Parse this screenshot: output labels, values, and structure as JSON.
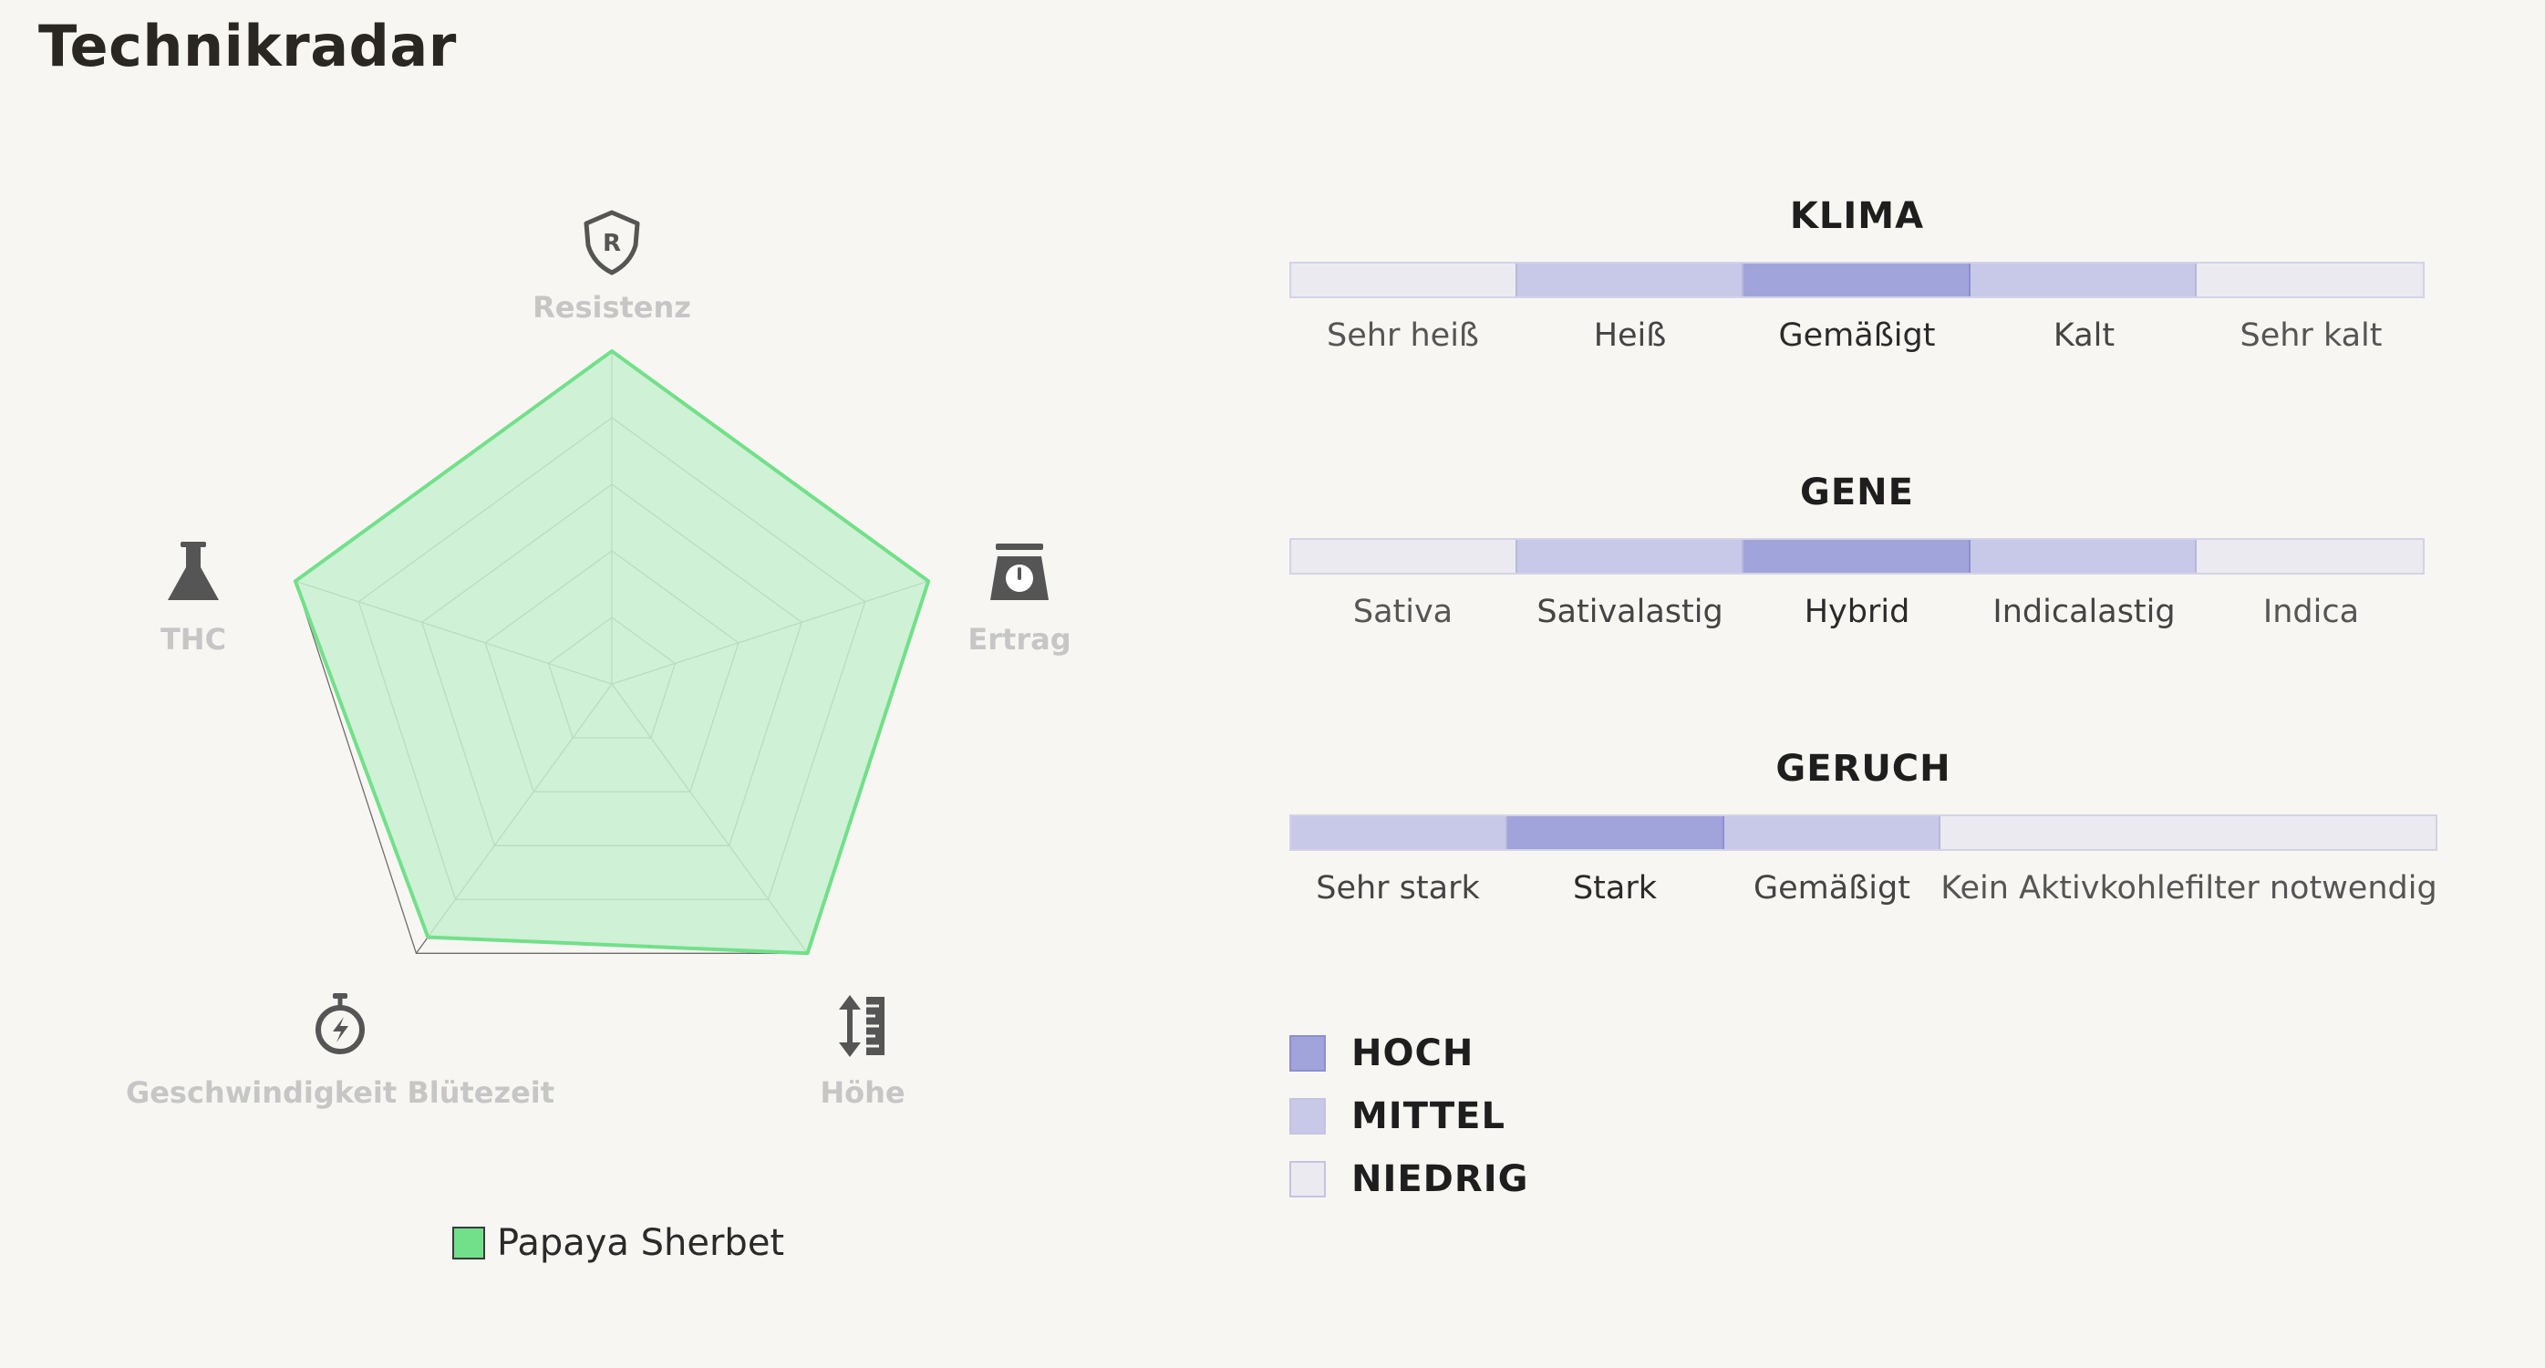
{
  "page": {
    "title": "Technikradar"
  },
  "colors": {
    "series_fill": "#c8f0cf",
    "series_stroke": "#72e08a",
    "grid": "#6e6e6e",
    "icon": "#555555",
    "level_high": "#a1a4db",
    "level_mid": "#c8c9e9",
    "level_low": "#ebeaf1"
  },
  "chart_data": {
    "type": "radar",
    "axes": [
      {
        "label": "Resistenz",
        "icon": "shield-r-icon"
      },
      {
        "label": "Ertrag",
        "icon": "scale-weight-icon"
      },
      {
        "label": "Höhe",
        "icon": "height-ruler-icon"
      },
      {
        "label": "Geschwindigkeit Blütezeit",
        "icon": "stopwatch-icon"
      },
      {
        "label": "THC",
        "icon": "flask-icon"
      }
    ],
    "range": [
      0,
      5
    ],
    "rings": 5,
    "series": [
      {
        "name": "Papaya Sherbet",
        "values": [
          5,
          5,
          5,
          4.7,
          5
        ]
      }
    ],
    "legend": "bottom"
  },
  "scales": [
    {
      "title": "KLIMA",
      "segments": [
        {
          "label": "Sehr heiß",
          "level": "low"
        },
        {
          "label": "Heiß",
          "level": "mid"
        },
        {
          "label": "Gemäßigt",
          "level": "high"
        },
        {
          "label": "Kalt",
          "level": "mid"
        },
        {
          "label": "Sehr kalt",
          "level": "low"
        }
      ]
    },
    {
      "title": "GENE",
      "segments": [
        {
          "label": "Sativa",
          "level": "low"
        },
        {
          "label": "Sativalastig",
          "level": "mid"
        },
        {
          "label": "Hybrid",
          "level": "high"
        },
        {
          "label": "Indicalastig",
          "level": "mid"
        },
        {
          "label": "Indica",
          "level": "low"
        }
      ]
    },
    {
      "title": "GERUCH",
      "segments": [
        {
          "label": "Sehr stark",
          "level": "mid"
        },
        {
          "label": "Stark",
          "level": "high"
        },
        {
          "label": "Gemäßigt",
          "level": "mid"
        },
        {
          "label": "Kein Aktivkohlefilter notwendig",
          "level": "low"
        }
      ]
    }
  ],
  "key": [
    {
      "label": "HOCH",
      "level": "high"
    },
    {
      "label": "MITTEL",
      "level": "mid"
    },
    {
      "label": "NIEDRIG",
      "level": "low"
    }
  ]
}
